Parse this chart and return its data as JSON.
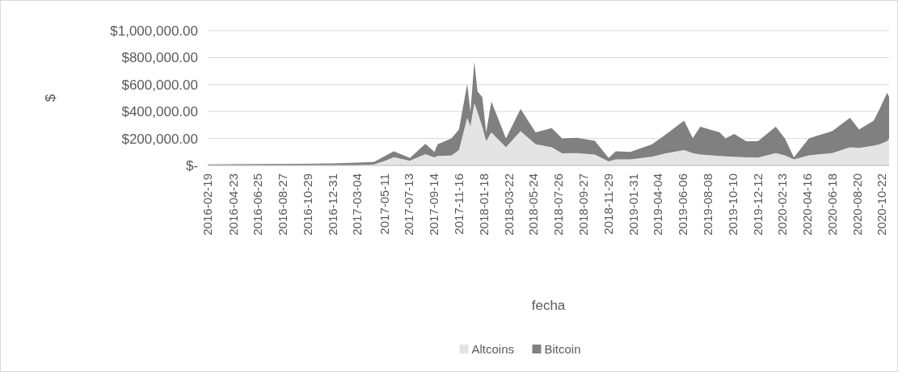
{
  "chart_data": {
    "type": "area",
    "stacked": true,
    "xlabel": "fecha",
    "ylabel": "$",
    "x": [
      "2016-02-19",
      "2016-06-15",
      "2016-10-15",
      "2016-12-31",
      "2017-02-20",
      "2017-04-15",
      "2017-05-13",
      "2017-06-04",
      "2017-07-15",
      "2017-08-23",
      "2017-09-15",
      "2017-09-23",
      "2017-10-28",
      "2017-11-16",
      "2017-12-07",
      "2017-12-15",
      "2017-12-25",
      "2018-01-02",
      "2018-01-14",
      "2018-01-24",
      "2018-02-06",
      "2018-03-15",
      "2018-04-21",
      "2018-05-29",
      "2018-07-09",
      "2018-08-04",
      "2018-09-11",
      "2018-10-26",
      "2018-11-30",
      "2018-12-18",
      "2019-01-24",
      "2019-03-19",
      "2019-04-24",
      "2019-06-09",
      "2019-07-01",
      "2019-07-20",
      "2019-09-07",
      "2019-09-22",
      "2019-10-14",
      "2019-11-13",
      "2019-12-13",
      "2020-01-27",
      "2020-02-19",
      "2020-03-13",
      "2020-04-20",
      "2020-06-18",
      "2020-08-02",
      "2020-08-25",
      "2020-10-01",
      "2020-10-16",
      "2020-11-04",
      "2020-11-09"
    ],
    "series": [
      {
        "name": "Altcoins",
        "color": "#e4e4e4",
        "values": [
          1000,
          1000,
          1000,
          1000,
          2000,
          8000,
          35000,
          62000,
          35000,
          84000,
          60000,
          70000,
          73000,
          114000,
          354000,
          290000,
          463000,
          397000,
          288000,
          179000,
          245000,
          135000,
          255000,
          157000,
          135000,
          90000,
          92000,
          81000,
          30000,
          45000,
          45000,
          65000,
          90000,
          114000,
          92000,
          81000,
          70000,
          68000,
          65000,
          60000,
          59000,
          92000,
          75000,
          45000,
          75000,
          92000,
          135000,
          130000,
          146000,
          157000,
          179000,
          201000
        ]
      },
      {
        "name": "Bitcoin",
        "color": "#808080",
        "values": [
          6000,
          9000,
          11000,
          14000,
          18000,
          17000,
          35000,
          43000,
          20000,
          76000,
          40000,
          87000,
          127000,
          152000,
          251000,
          107000,
          306000,
          153000,
          219000,
          66000,
          229000,
          66000,
          164000,
          88000,
          142000,
          111000,
          113000,
          102000,
          25000,
          60000,
          55000,
          90000,
          140000,
          218000,
          110000,
          207000,
          175000,
          133000,
          169000,
          120000,
          120000,
          196000,
          126000,
          15000,
          125000,
          163000,
          219000,
          136000,
          186000,
          262000,
          360000,
          306000
        ]
      }
    ],
    "xlim": [
      "2016-02-19",
      "2020-11-09"
    ],
    "xticks": [
      "2016-02-19",
      "2016-04-23",
      "2016-06-25",
      "2016-08-27",
      "2016-10-29",
      "2016-12-31",
      "2017-03-04",
      "2017-05-11",
      "2017-07-13",
      "2017-09-14",
      "2017-11-16",
      "2018-01-18",
      "2018-03-22",
      "2018-05-24",
      "2018-07-26",
      "2018-09-27",
      "2018-11-29",
      "2019-01-31",
      "2019-04-04",
      "2019-06-06",
      "2019-08-08",
      "2019-10-10",
      "2019-12-12",
      "2020-02-13",
      "2020-04-16",
      "2020-06-18",
      "2020-08-20",
      "2020-10-22"
    ],
    "ylim": [
      0,
      1000000
    ],
    "yticks": [
      {
        "value": 0,
        "label": "$-"
      },
      {
        "value": 200000,
        "label": "$200,000.00"
      },
      {
        "value": 400000,
        "label": "$400,000.00"
      },
      {
        "value": 600000,
        "label": "$600,000.00"
      },
      {
        "value": 800000,
        "label": "$800,000.00"
      },
      {
        "value": 1000000,
        "label": "$1,000,000.00"
      }
    ],
    "grid": "y",
    "legend": "bottom"
  }
}
